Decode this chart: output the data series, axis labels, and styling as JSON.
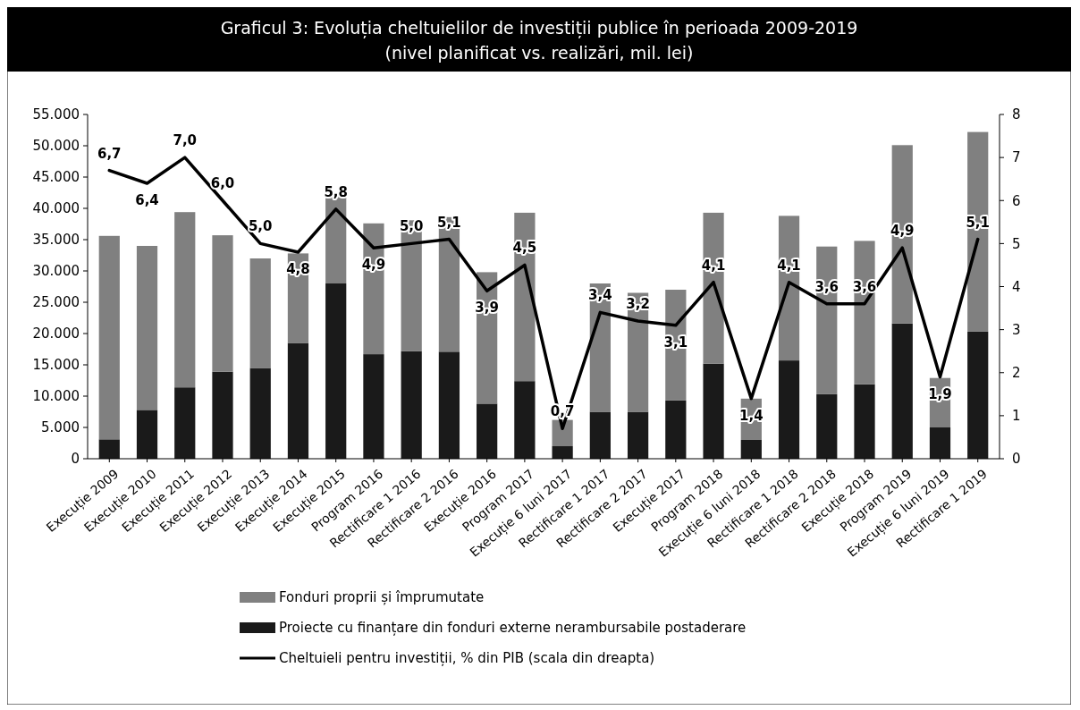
{
  "chart_data": {
    "type": "bar",
    "stacked": true,
    "title": "Graficul 3: Evoluția cheltuielilor de investiții publice în perioada 2009-2019",
    "subtitle": "(nivel planificat vs. realizări, mil. lei)",
    "categories": [
      "Execuție 2009",
      "Execuție 2010",
      "Execuție 2011",
      "Execuție 2012",
      "Execuție 2013",
      "Execuție 2014",
      "Execuție 2015",
      "Program 2016",
      "Rectificare 1 2016",
      "Rectificare 2 2016",
      "Execuție 2016",
      "Program 2017",
      "Execuție 6 luni 2017",
      "Rectificare 1 2017",
      "Rectificare 2 2017",
      "Execuție 2017",
      "Program 2018",
      "Execuție 6 luni 2018",
      "Rectificare 1 2018",
      "Rectificare 2 2018",
      "Execuție 2018",
      "Program 2019",
      "Execuție 6 luni 2019",
      "Rectificare 1 2019"
    ],
    "series": [
      {
        "name": "Proiecte cu finanțare din fonduri externe nerambursabile postaderare",
        "color": "#1a1a1a",
        "values": [
          3100,
          7800,
          11400,
          13900,
          14500,
          18500,
          28000,
          16700,
          17200,
          17100,
          8800,
          12400,
          2000,
          7500,
          7500,
          9300,
          15200,
          3000,
          15700,
          10300,
          11900,
          21600,
          5000,
          20300
        ]
      },
      {
        "name": "Fonduri proprii și împrumutate",
        "color": "#808080",
        "values": [
          32500,
          26200,
          28000,
          21800,
          17500,
          14300,
          14000,
          20900,
          20900,
          21500,
          21000,
          26900,
          4200,
          20500,
          19000,
          17700,
          24100,
          6600,
          23100,
          23600,
          22900,
          28500,
          7900,
          31900
        ]
      },
      {
        "name": "Cheltuieli pentru investiții, % din PIB (scala din dreapta)",
        "type": "line",
        "axis": "y2",
        "color": "#000000",
        "value_labels": [
          "6,7",
          "6,4",
          "7,0",
          "6,0",
          "5,0",
          "4,8",
          "5,8",
          "4,9",
          "5,0",
          "5,1",
          "3,9",
          "4,5",
          "0,7",
          "3,4",
          "3,2",
          "3,1",
          "4,1",
          "1,4",
          "4,1",
          "3,6",
          "3,6",
          "4,9",
          "1,9",
          "5,1"
        ],
        "values": [
          6.7,
          6.4,
          7.0,
          6.0,
          5.0,
          4.8,
          5.8,
          4.9,
          5.0,
          5.1,
          3.9,
          4.5,
          0.7,
          3.4,
          3.2,
          3.1,
          4.1,
          1.4,
          4.1,
          3.6,
          3.6,
          4.9,
          1.9,
          5.1
        ]
      }
    ],
    "ylim": [
      0,
      55000
    ],
    "yticks": [
      0,
      {
        "value": 5000,
        "label": "5.000"
      },
      {
        "value": 10000,
        "label": "10.000"
      },
      {
        "value": 15000,
        "label": "15.000"
      },
      {
        "value": 20000,
        "label": "20.000"
      },
      {
        "value": 25000,
        "label": "25.000"
      },
      {
        "value": 30000,
        "label": "30.000"
      },
      {
        "value": 35000,
        "label": "35.000"
      },
      {
        "value": 40000,
        "label": "40.000"
      },
      {
        "value": 45000,
        "label": "45.000"
      },
      {
        "value": 50000,
        "label": "50.000"
      },
      {
        "value": 55000,
        "label": "55.000"
      }
    ],
    "y2lim": [
      0,
      8
    ],
    "y2ticks": [
      0,
      1,
      2,
      3,
      4,
      5,
      6,
      7,
      8
    ],
    "legend": "bottom",
    "grid": false
  }
}
